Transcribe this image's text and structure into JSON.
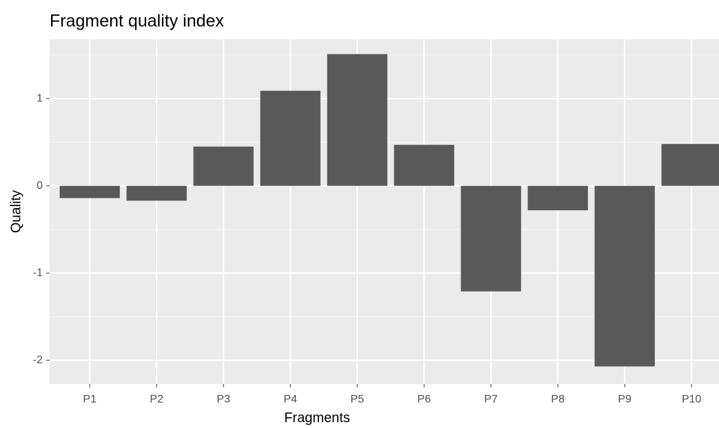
{
  "chart_data": {
    "type": "bar",
    "title": "Fragment quality index",
    "x_label": "Fragments",
    "y_label": "Quality",
    "categories": [
      "P1",
      "P2",
      "P3",
      "P4",
      "P5",
      "P6",
      "P7",
      "P8",
      "P9",
      "P10"
    ],
    "values": [
      -0.14,
      -0.17,
      0.45,
      1.09,
      1.51,
      0.47,
      -1.21,
      -0.28,
      -2.07,
      0.48
    ],
    "color": "#595959",
    "ylim": [
      -2.27,
      1.68
    ],
    "yticks": [
      -2,
      -1,
      0,
      1
    ],
    "grid": true
  }
}
